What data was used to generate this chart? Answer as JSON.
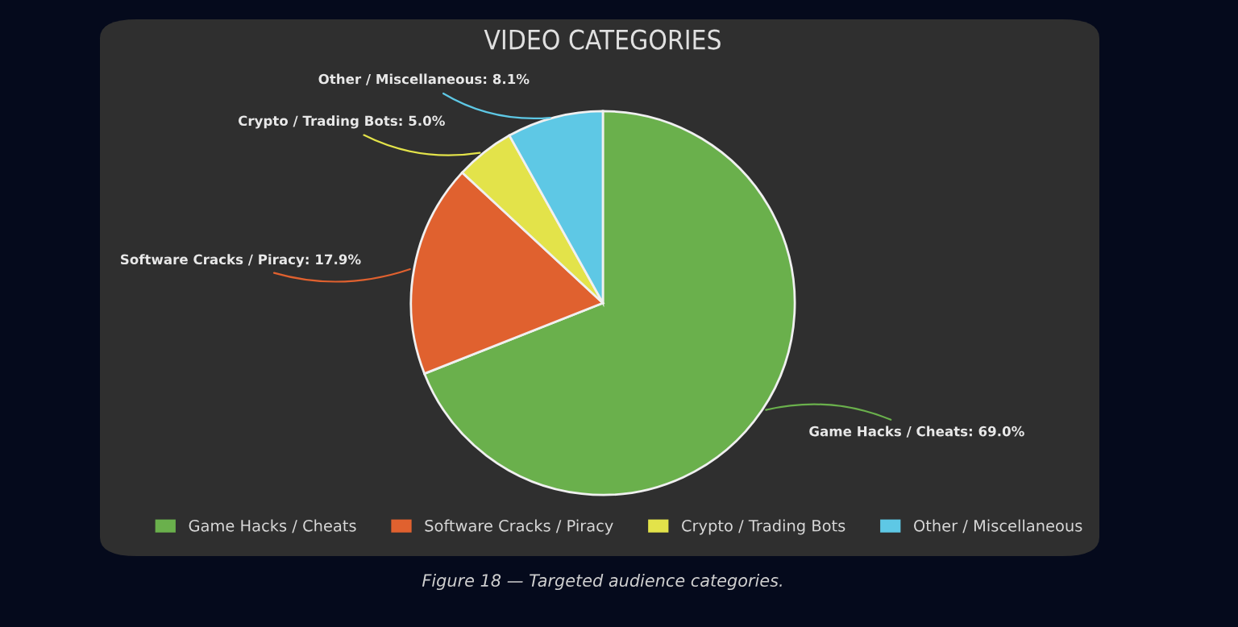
{
  "chart_data": {
    "type": "pie",
    "title": "VIDEO CATEGORIES",
    "categories": [
      "Game Hacks / Cheats",
      "Software Cracks / Piracy",
      "Crypto / Trading Bots",
      "Other / Miscellaneous"
    ],
    "values": [
      69.0,
      17.9,
      5.0,
      8.1
    ],
    "value_labels": [
      "Game Hacks / Cheats: 69.0%",
      "Software Cracks / Piracy: 17.9%",
      "Crypto / Trading Bots: 5.0%",
      "Other / Miscellaneous: 8.1%"
    ],
    "colors": [
      "#6ab04c",
      "#e0612f",
      "#e3e34a",
      "#5ec8e5"
    ],
    "legend": "bottom",
    "annotations": [
      "Figure 18 — Targeted audience categories."
    ]
  }
}
